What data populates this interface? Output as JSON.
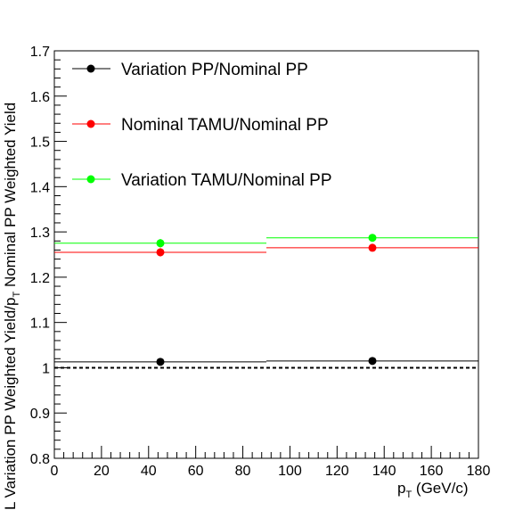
{
  "chart_data": {
    "type": "scatter",
    "xlabel_main": "p",
    "xlabel_sub": "T",
    "xlabel_rest": " (GeV/c)",
    "ylabel_main": "L Variation PP Weighted Yield/p",
    "ylabel_sub": "T",
    "ylabel_rest": " Nominal PP Weighted Yield",
    "xlim": [
      0,
      180
    ],
    "ylim": [
      0.8,
      1.7
    ],
    "x_ticks": [
      0,
      20,
      40,
      60,
      80,
      100,
      120,
      140,
      160,
      180
    ],
    "y_ticks": [
      0.8,
      0.9,
      1,
      1.1,
      1.2,
      1.3,
      1.4,
      1.5,
      1.6,
      1.7
    ],
    "reference_line": 1.0,
    "series": [
      {
        "name": "Variation PP/Nominal PP",
        "color": "#000000",
        "points": [
          {
            "x": 45,
            "xlow": 0,
            "xhigh": 90,
            "y": 1.013,
            "yerr": 0.006
          },
          {
            "x": 135,
            "xlow": 90,
            "xhigh": 180,
            "y": 1.015,
            "yerr": 0.004
          }
        ]
      },
      {
        "name": "Nominal TAMU/Nominal PP",
        "color": "#ff0000",
        "points": [
          {
            "x": 45,
            "xlow": 0,
            "xhigh": 90,
            "y": 1.255,
            "yerr": 0.009
          },
          {
            "x": 135,
            "xlow": 90,
            "xhigh": 180,
            "y": 1.265,
            "yerr": 0.005
          }
        ]
      },
      {
        "name": "Variation TAMU/Nominal PP",
        "color": "#00ff00",
        "points": [
          {
            "x": 45,
            "xlow": 0,
            "xhigh": 90,
            "y": 1.275,
            "yerr": 0.009
          },
          {
            "x": 135,
            "xlow": 90,
            "xhigh": 180,
            "y": 1.287,
            "yerr": 0.005
          }
        ]
      }
    ],
    "legend_position": "top-left",
    "grid": false
  }
}
